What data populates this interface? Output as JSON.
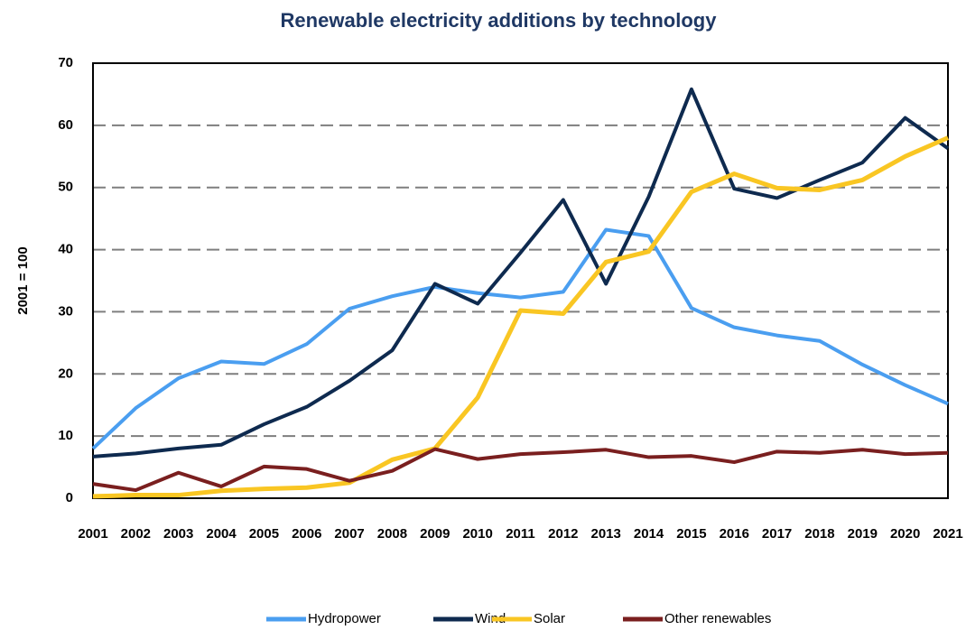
{
  "chart_data": {
    "type": "line",
    "title": "Renewable electricity additions by technology",
    "y_label": "2001 = 100",
    "categories": [
      "2001",
      "2002",
      "2003",
      "2004",
      "2005",
      "2006",
      "2007",
      "2008",
      "2009",
      "2010",
      "2011",
      "2012",
      "2013",
      "2014",
      "2015",
      "2016",
      "2017",
      "2018",
      "2019",
      "2020",
      "2021"
    ],
    "series": [
      {
        "name": "Hydropower",
        "color": "#4a9ef0",
        "values": [
          8,
          14.5,
          19.3,
          22,
          21.6,
          24.8,
          30.5,
          32.5,
          34,
          33,
          32.3,
          33.2,
          43.2,
          42.2,
          30.6,
          27.5,
          26.2,
          25.3,
          21.5,
          18.2,
          15.2
        ]
      },
      {
        "name": "Wind",
        "color": "#0e2a4f",
        "values": [
          6.7,
          7.2,
          8,
          8.6,
          11.9,
          14.7,
          18.9,
          23.8,
          34.5,
          31.3,
          39.5,
          48,
          34.5,
          48.5,
          65.8,
          49.8,
          48.3,
          51.2,
          54,
          61.2,
          56.3
        ]
      },
      {
        "name": "Solar",
        "color": "#f9c623",
        "values": [
          0.3,
          0.5,
          0.5,
          1.2,
          1.5,
          1.7,
          2.5,
          6.2,
          8,
          16.2,
          30.2,
          29.7,
          38,
          39.7,
          49.3,
          52.2,
          49.9,
          49.6,
          51.2,
          55,
          58
        ]
      },
      {
        "name": "Other renewables",
        "color": "#7a1f1f",
        "values": [
          2.3,
          1.3,
          4.1,
          1.9,
          5.1,
          4.7,
          2.8,
          4.4,
          7.9,
          6.3,
          7.1,
          7.4,
          7.8,
          6.6,
          6.8,
          5.8,
          7.5,
          7.3,
          7.8,
          7.1,
          7.3
        ]
      }
    ],
    "ylim": [
      0,
      70
    ],
    "yticks": [
      0,
      10,
      20,
      30,
      40,
      50,
      60,
      70
    ],
    "grid": true,
    "legend": "bottom"
  }
}
